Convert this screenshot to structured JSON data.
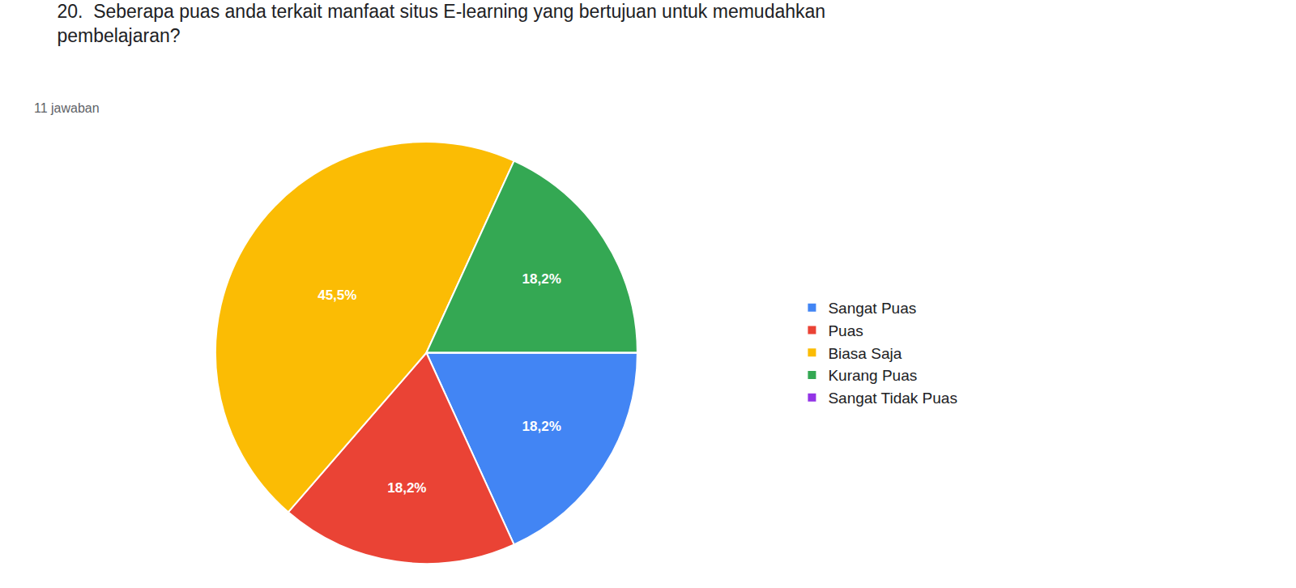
{
  "chart_data": {
    "type": "pie",
    "title": "20.  Seberapa puas anda terkait manfaat situs E-learning yang bertujuan untuk memudahkan\npembelajaran?",
    "subtitle": "11 jawaban",
    "categories": [
      "Sangat Puas",
      "Puas",
      "Biasa Saja",
      "Kurang Puas",
      "Sangat Tidak Puas"
    ],
    "values": [
      18.2,
      18.2,
      45.5,
      18.2,
      0
    ],
    "value_labels": [
      "18,2%",
      "18,2%",
      "45,5%",
      "18,2%",
      null
    ],
    "colors": [
      "#4285F4",
      "#EA4335",
      "#FBBC04",
      "#34A853",
      "#9334E6"
    ],
    "data_labels": true,
    "legend": "right"
  }
}
